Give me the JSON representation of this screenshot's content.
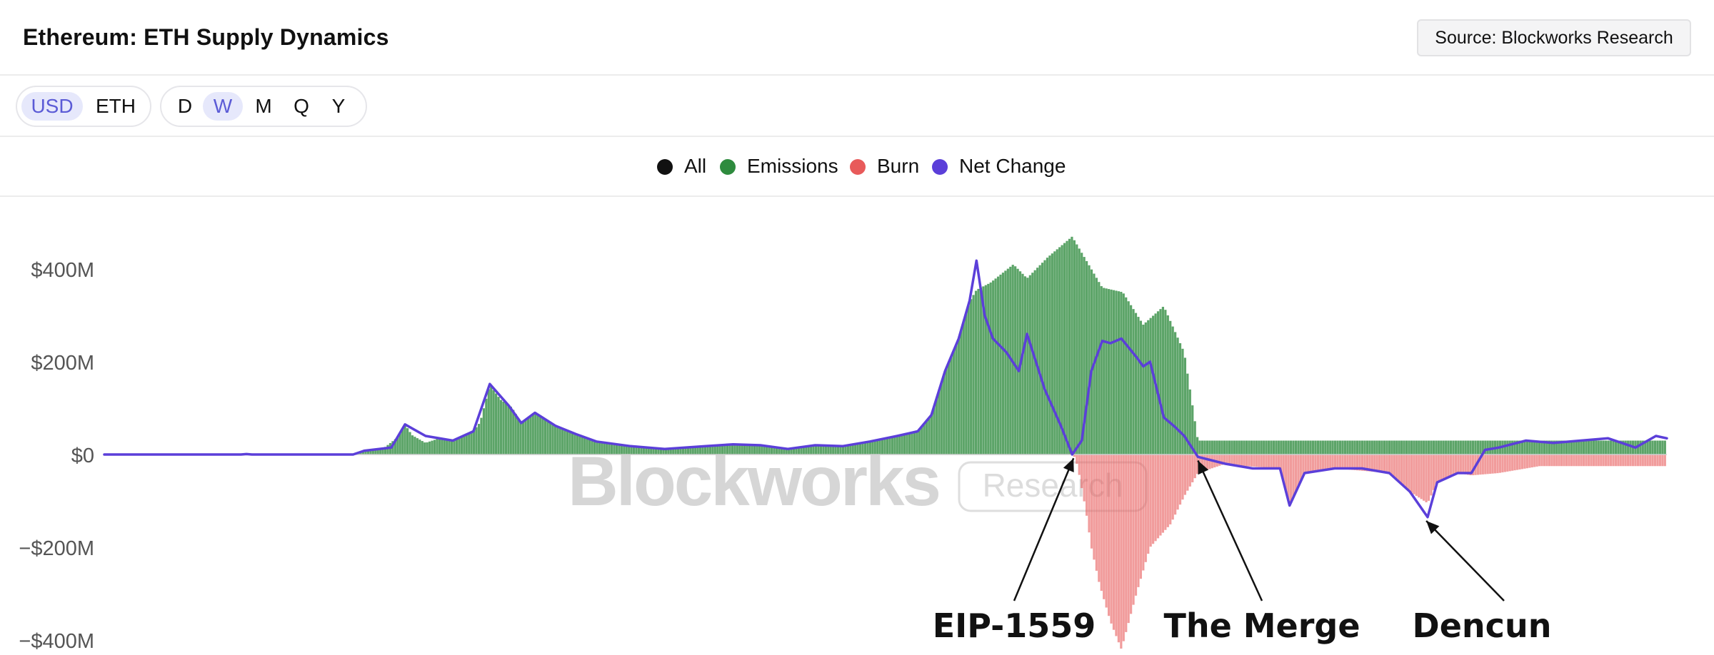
{
  "header": {
    "title": "Ethereum: ETH Supply Dynamics",
    "source_label": "Source: Blockworks Research"
  },
  "controls": {
    "currency": [
      {
        "label": "USD",
        "active": true
      },
      {
        "label": "ETH",
        "active": false
      }
    ],
    "interval": [
      {
        "label": "D",
        "active": false
      },
      {
        "label": "W",
        "active": true
      },
      {
        "label": "M",
        "active": false
      },
      {
        "label": "Q",
        "active": false
      },
      {
        "label": "Y",
        "active": false
      }
    ]
  },
  "legend": [
    {
      "label": "All",
      "color": "#111111"
    },
    {
      "label": "Emissions",
      "color": "#2e8b3e"
    },
    {
      "label": "Burn",
      "color": "#e85a5a"
    },
    {
      "label": "Net Change",
      "color": "#5b3fd9"
    }
  ],
  "watermark": {
    "brand": "Blockworks",
    "tag": "Research"
  },
  "chart_data": {
    "type": "bar",
    "title": "Ethereum: ETH Supply Dynamics",
    "unit": "USD",
    "interval": "W",
    "ylim": [
      -430,
      500
    ],
    "y_ticks": [
      400,
      200,
      0,
      -200,
      -400
    ],
    "y_tick_labels": [
      "$400M",
      "$200M",
      "$0",
      "−$200M",
      "−$400M"
    ],
    "grid": false,
    "legend_position": "top-center",
    "colors": {
      "emissions": "#2e8b3e",
      "burn": "#e85a5a",
      "net_change": "#5b3fd9"
    },
    "series": [
      {
        "name": "Emissions",
        "points": [
          [
            0,
            0
          ],
          [
            100,
            0
          ],
          [
            104,
            1
          ],
          [
            108,
            0
          ],
          [
            182,
            0
          ],
          [
            190,
            10
          ],
          [
            205,
            15
          ],
          [
            215,
            38
          ],
          [
            220,
            65
          ],
          [
            225,
            42
          ],
          [
            235,
            25
          ],
          [
            245,
            35
          ],
          [
            255,
            30
          ],
          [
            270,
            50
          ],
          [
            275,
            70
          ],
          [
            282,
            150
          ],
          [
            290,
            118
          ],
          [
            298,
            102
          ],
          [
            305,
            68
          ],
          [
            315,
            92
          ],
          [
            330,
            62
          ],
          [
            345,
            45
          ],
          [
            360,
            28
          ],
          [
            385,
            18
          ],
          [
            410,
            12
          ],
          [
            440,
            18
          ],
          [
            460,
            22
          ],
          [
            480,
            20
          ],
          [
            500,
            12
          ],
          [
            520,
            20
          ],
          [
            540,
            18
          ],
          [
            560,
            28
          ],
          [
            580,
            40
          ],
          [
            595,
            50
          ],
          [
            605,
            85
          ],
          [
            615,
            180
          ],
          [
            625,
            250
          ],
          [
            633,
            330
          ],
          [
            638,
            355
          ],
          [
            648,
            370
          ],
          [
            665,
            410
          ],
          [
            675,
            380
          ],
          [
            690,
            425
          ],
          [
            700,
            450
          ],
          [
            708,
            470
          ],
          [
            720,
            410
          ],
          [
            730,
            360
          ],
          [
            745,
            350
          ],
          [
            760,
            280
          ],
          [
            775,
            320
          ],
          [
            790,
            220
          ],
          [
            800,
            30
          ]
        ]
      },
      {
        "name": "Burn",
        "points": [
          [
            0,
            0
          ],
          [
            709,
            0
          ],
          [
            712,
            -25
          ],
          [
            718,
            -120
          ],
          [
            722,
            -200
          ],
          [
            728,
            -280
          ],
          [
            736,
            -360
          ],
          [
            744,
            -420
          ],
          [
            755,
            -300
          ],
          [
            765,
            -200
          ],
          [
            780,
            -150
          ],
          [
            790,
            -90
          ],
          [
            800,
            -40
          ],
          [
            820,
            -20
          ],
          [
            835,
            -25
          ],
          [
            860,
            -30
          ],
          [
            867,
            -110
          ],
          [
            878,
            -40
          ],
          [
            900,
            -30
          ],
          [
            940,
            -40
          ],
          [
            955,
            -80
          ],
          [
            968,
            -105
          ],
          [
            975,
            -60
          ],
          [
            990,
            -40
          ],
          [
            1000,
            -45
          ],
          [
            1020,
            -40
          ],
          [
            1050,
            -25
          ]
        ]
      },
      {
        "name": "Net Change",
        "points": [
          [
            0,
            0
          ],
          [
            100,
            0
          ],
          [
            104,
            1
          ],
          [
            108,
            0
          ],
          [
            182,
            0
          ],
          [
            190,
            8
          ],
          [
            210,
            15
          ],
          [
            220,
            65
          ],
          [
            235,
            40
          ],
          [
            255,
            30
          ],
          [
            270,
            50
          ],
          [
            282,
            152
          ],
          [
            296,
            105
          ],
          [
            305,
            68
          ],
          [
            315,
            90
          ],
          [
            330,
            62
          ],
          [
            345,
            44
          ],
          [
            360,
            28
          ],
          [
            385,
            18
          ],
          [
            410,
            12
          ],
          [
            440,
            18
          ],
          [
            460,
            22
          ],
          [
            480,
            20
          ],
          [
            500,
            12
          ],
          [
            520,
            20
          ],
          [
            540,
            18
          ],
          [
            560,
            28
          ],
          [
            580,
            40
          ],
          [
            595,
            50
          ],
          [
            605,
            85
          ],
          [
            615,
            180
          ],
          [
            625,
            250
          ],
          [
            633,
            332
          ],
          [
            638,
            418
          ],
          [
            644,
            300
          ],
          [
            650,
            250
          ],
          [
            660,
            220
          ],
          [
            669,
            180
          ],
          [
            675,
            260
          ],
          [
            688,
            140
          ],
          [
            700,
            60
          ],
          [
            708,
            0
          ],
          [
            715,
            30
          ],
          [
            722,
            180
          ],
          [
            730,
            245
          ],
          [
            736,
            240
          ],
          [
            744,
            250
          ],
          [
            755,
            210
          ],
          [
            760,
            190
          ],
          [
            765,
            200
          ],
          [
            775,
            80
          ],
          [
            783,
            60
          ],
          [
            790,
            40
          ],
          [
            800,
            -5
          ],
          [
            820,
            -20
          ],
          [
            840,
            -30
          ],
          [
            860,
            -30
          ],
          [
            867,
            -110
          ],
          [
            878,
            -40
          ],
          [
            900,
            -30
          ],
          [
            920,
            -30
          ],
          [
            940,
            -40
          ],
          [
            955,
            -80
          ],
          [
            968,
            -135
          ],
          [
            975,
            -60
          ],
          [
            990,
            -40
          ],
          [
            1000,
            -40
          ],
          [
            1010,
            10
          ],
          [
            1020,
            15
          ],
          [
            1040,
            30
          ],
          [
            1060,
            25
          ],
          [
            1080,
            30
          ],
          [
            1100,
            35
          ],
          [
            1120,
            15
          ],
          [
            1135,
            40
          ],
          [
            1143,
            35
          ]
        ]
      }
    ],
    "annotations": [
      {
        "label": "EIP-1559",
        "x": 709,
        "y": -5
      },
      {
        "label": "The Merge",
        "x": 800,
        "y": -10
      },
      {
        "label": "Dencun",
        "x": 967,
        "y": -140
      }
    ]
  }
}
